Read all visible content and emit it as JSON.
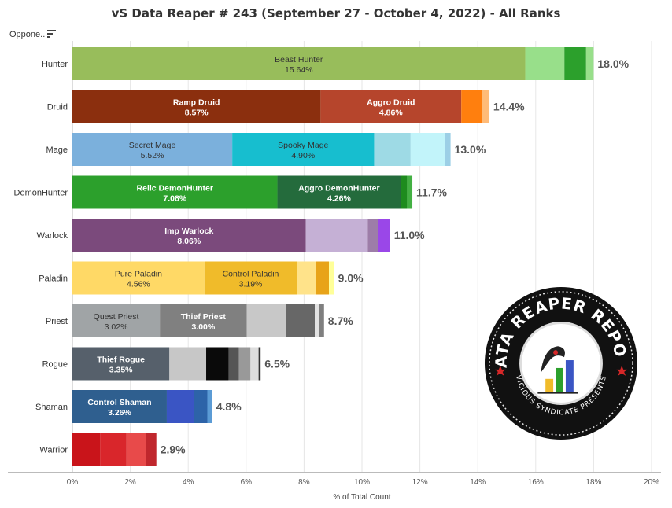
{
  "header": {
    "title": "vS Data Reaper # 243 (September 27 - October 4, 2022) - All Ranks",
    "column_label": "Oppone.."
  },
  "logo": {
    "text_top": "DATA REAPER REPORT",
    "text_bottom": "VICIOUS SYNDICATE PRESENTS"
  },
  "colors": {
    "gridline": "#e6e6e6",
    "axis": "#bbbbbb",
    "text": "#333333"
  },
  "chart_data": {
    "type": "bar",
    "orientation": "horizontal",
    "stacked": true,
    "title": "vS Data Reaper # 243 (September 27 - October 4, 2022) - All Ranks",
    "xlabel": "% of Total Count",
    "ylabel": "",
    "xlim": [
      0,
      20
    ],
    "x_ticks": [
      "0%",
      "2%",
      "4%",
      "6%",
      "8%",
      "10%",
      "12%",
      "14%",
      "16%",
      "18%",
      "20%"
    ],
    "grid": true,
    "categories": [
      {
        "name": "Hunter",
        "total_label": "18.0%",
        "segments": [
          {
            "label": "Beast Hunter",
            "value_label": "15.64%",
            "value": 15.64,
            "color": "#98bd5b",
            "text_color": "#333333"
          },
          {
            "value": 1.35,
            "color": "#98df8a"
          },
          {
            "value": 0.75,
            "color": "#2ca02c"
          },
          {
            "value": 0.26,
            "color": "#98df8a"
          }
        ]
      },
      {
        "name": "Druid",
        "total_label": "14.4%",
        "segments": [
          {
            "label": "Ramp Druid",
            "value_label": "8.57%",
            "value": 8.57,
            "color": "#8b2f0e",
            "text_color": "#ffffff"
          },
          {
            "label": "Aggro Druid",
            "value_label": "4.86%",
            "value": 4.86,
            "color": "#b6452c",
            "text_color": "#ffffff"
          },
          {
            "value": 0.72,
            "color": "#ff7f0e"
          },
          {
            "value": 0.25,
            "color": "#ffbb78"
          }
        ]
      },
      {
        "name": "Mage",
        "total_label": "13.0%",
        "segments": [
          {
            "label": "Secret Mage",
            "value_label": "5.52%",
            "value": 5.52,
            "color": "#7bb0dc",
            "text_color": "#333333"
          },
          {
            "label": "Spooky Mage",
            "value_label": "4.90%",
            "value": 4.9,
            "color": "#17becf",
            "text_color": "#333333"
          },
          {
            "value": 1.26,
            "color": "#9edae5"
          },
          {
            "value": 1.18,
            "color": "#c2f4fa"
          },
          {
            "value": 0.2,
            "color": "#9ccfe6"
          }
        ]
      },
      {
        "name": "DemonHunter",
        "total_label": "11.7%",
        "segments": [
          {
            "label": "Relic DemonHunter",
            "value_label": "7.08%",
            "value": 7.08,
            "color": "#2ca02c",
            "text_color": "#ffffff"
          },
          {
            "label": "Aggro DemonHunter",
            "value_label": "4.26%",
            "value": 4.26,
            "color": "#246b3c",
            "text_color": "#ffffff"
          },
          {
            "value": 0.22,
            "color": "#1e8b1e"
          },
          {
            "value": 0.18,
            "color": "#43b043"
          }
        ]
      },
      {
        "name": "Warlock",
        "total_label": "11.0%",
        "segments": [
          {
            "label": "Imp Warlock",
            "value_label": "8.06%",
            "value": 8.06,
            "color": "#7b4a7c",
            "text_color": "#ffffff"
          },
          {
            "value": 2.14,
            "color": "#c5b0d5"
          },
          {
            "value": 0.37,
            "color": "#9d7da8"
          },
          {
            "value": 0.4,
            "color": "#9a47e8"
          }
        ]
      },
      {
        "name": "Paladin",
        "total_label": "9.0%",
        "segments": [
          {
            "label": "Pure Paladin",
            "value_label": "4.56%",
            "value": 4.56,
            "color": "#ffd966",
            "text_color": "#333333"
          },
          {
            "label": "Control Paladin",
            "value_label": "3.19%",
            "value": 3.19,
            "color": "#f0bb2a",
            "text_color": "#333333"
          },
          {
            "value": 0.66,
            "color": "#ffe38a"
          },
          {
            "value": 0.45,
            "color": "#e8a318"
          },
          {
            "value": 0.18,
            "color": "#ffff99"
          }
        ]
      },
      {
        "name": "Priest",
        "total_label": "8.7%",
        "segments": [
          {
            "label": "Quest Priest",
            "value_label": "3.02%",
            "value": 3.02,
            "color": "#a0a4a6",
            "text_color": "#333333"
          },
          {
            "label": "Thief Priest",
            "value_label": "3.00%",
            "value": 3.0,
            "color": "#808080",
            "text_color": "#ffffff"
          },
          {
            "value": 1.35,
            "color": "#c8c8c8"
          },
          {
            "value": 1.0,
            "color": "#676767"
          },
          {
            "value": 0.16,
            "color": "#e2e2e2"
          },
          {
            "value": 0.16,
            "color": "#7f7f7f"
          }
        ]
      },
      {
        "name": "Rogue",
        "total_label": "6.5%",
        "segments": [
          {
            "label": "Thief Rogue",
            "value_label": "3.35%",
            "value": 3.35,
            "color": "#56606b",
            "text_color": "#ffffff"
          },
          {
            "value": 1.27,
            "color": "#c7c7c7"
          },
          {
            "value": 0.78,
            "color": "#0a0a0a"
          },
          {
            "value": 0.35,
            "color": "#555555"
          },
          {
            "value": 0.4,
            "color": "#999999"
          },
          {
            "value": 0.28,
            "color": "#dddddd"
          },
          {
            "value": 0.07,
            "color": "#333333"
          }
        ]
      },
      {
        "name": "Shaman",
        "total_label": "4.8%",
        "segments": [
          {
            "label": "Control Shaman",
            "value_label": "3.26%",
            "value": 3.26,
            "color": "#2f5f8f",
            "text_color": "#ffffff"
          },
          {
            "value": 0.93,
            "color": "#3a55c4"
          },
          {
            "value": 0.47,
            "color": "#2d63a8"
          },
          {
            "value": 0.17,
            "color": "#5b9bd5"
          }
        ]
      },
      {
        "name": "Warrior",
        "total_label": "2.9%",
        "segments": [
          {
            "value": 0.96,
            "color": "#c9141a"
          },
          {
            "value": 0.91,
            "color": "#d9262b"
          },
          {
            "value": 0.67,
            "color": "#e84a4a"
          },
          {
            "value": 0.36,
            "color": "#c0272d"
          }
        ]
      }
    ]
  }
}
